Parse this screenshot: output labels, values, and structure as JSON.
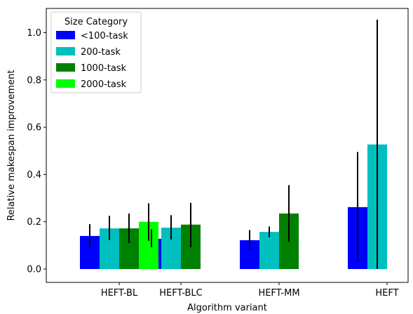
{
  "chart_data": {
    "type": "bar",
    "xlabel": "Algorithm variant",
    "ylabel": "Relative makespan improvement",
    "ylim": [
      -0.055,
      1.09
    ],
    "yticks": [
      0.0,
      0.2,
      0.4,
      0.6,
      0.8,
      1.0
    ],
    "ytick_labels": [
      "0.0",
      "0.2",
      "0.4",
      "0.6",
      "0.8",
      "1.0"
    ],
    "categories": [
      "HEFT-BL",
      "HEFT-BLC",
      "HEFT-MM",
      "HEFT"
    ],
    "grid": false,
    "legend": {
      "title": "Size Category",
      "placement": "top-left"
    },
    "series": [
      {
        "name": "<100-task",
        "color": "#0000ff",
        "values": [
          0.14,
          0.128,
          0.122,
          0.262
        ],
        "err_low": [
          0.088,
          0.093,
          0.08,
          0.032
        ],
        "err_high": [
          0.19,
          0.168,
          0.165,
          0.495
        ]
      },
      {
        "name": "200-task",
        "color": "#00bfbf",
        "values": [
          0.172,
          0.175,
          0.157,
          0.527
        ],
        "err_low": [
          0.122,
          0.125,
          0.135,
          0.0
        ],
        "err_high": [
          0.225,
          0.228,
          0.18,
          1.055
        ]
      },
      {
        "name": "1000-task",
        "color": "#008000",
        "values": [
          0.172,
          0.188,
          0.235,
          null
        ],
        "err_low": [
          0.11,
          0.092,
          0.115,
          null
        ],
        "err_high": [
          0.235,
          0.28,
          0.355,
          null
        ]
      },
      {
        "name": "2000-task",
        "color": "#00ff00",
        "values": [
          0.2,
          null,
          null,
          null
        ],
        "err_low": [
          0.12,
          null,
          null,
          null
        ],
        "err_high": [
          0.278,
          null,
          null,
          null
        ]
      }
    ]
  }
}
